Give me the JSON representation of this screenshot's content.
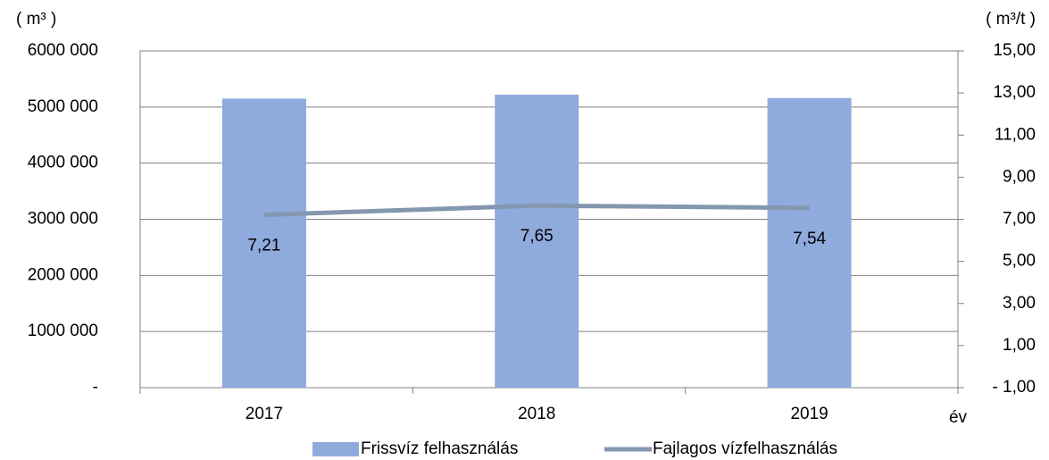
{
  "chart_data": {
    "type": "bar",
    "y_label": "( m³ )",
    "y2_label": "( m³/t )",
    "x_label": "év",
    "categories": [
      "2017",
      "2018",
      "2019"
    ],
    "series": [
      {
        "name": "Frissvíz felhasználás",
        "type": "bar",
        "color": "#8faadc",
        "values": [
          5150000,
          5220000,
          5160000
        ]
      },
      {
        "name": "Fajlagos vízfelhasználás",
        "type": "line",
        "axis": "y2",
        "color": "#8497b0",
        "values": [
          7.21,
          7.65,
          7.54
        ],
        "value_labels": [
          "7,21",
          "7,65",
          "7,54"
        ]
      }
    ],
    "ylim": [
      0,
      6000000
    ],
    "yticks": [
      {
        "value": 0,
        "label": "-"
      },
      {
        "value": 1000000,
        "label": "1000 000"
      },
      {
        "value": 2000000,
        "label": "2000 000"
      },
      {
        "value": 3000000,
        "label": "3000 000"
      },
      {
        "value": 4000000,
        "label": "4000 000"
      },
      {
        "value": 5000000,
        "label": "5000 000"
      },
      {
        "value": 6000000,
        "label": "6000 000"
      }
    ],
    "y2lim": [
      -1,
      15
    ],
    "y2ticks": [
      {
        "value": -1,
        "label": "- 1,00"
      },
      {
        "value": 1,
        "label": "1,00"
      },
      {
        "value": 3,
        "label": "3,00"
      },
      {
        "value": 5,
        "label": "5,00"
      },
      {
        "value": 7,
        "label": "7,00"
      },
      {
        "value": 9,
        "label": "9,00"
      },
      {
        "value": 11,
        "label": "11,00"
      },
      {
        "value": 13,
        "label": "13,00"
      },
      {
        "value": 15,
        "label": "15,00"
      }
    ],
    "grid": true,
    "legend": "bottom"
  }
}
